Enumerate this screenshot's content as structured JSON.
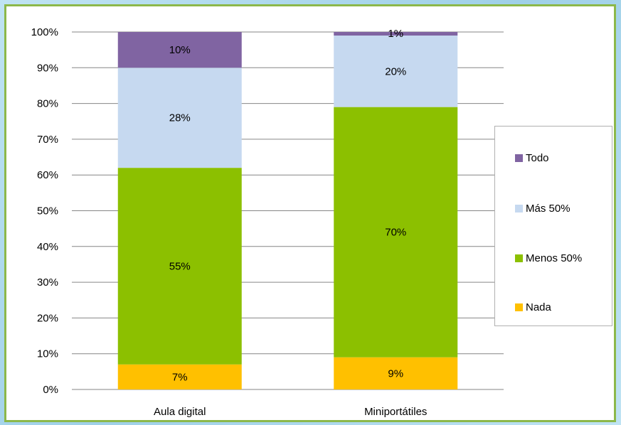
{
  "chart_data": {
    "type": "bar",
    "stacked": true,
    "categories": [
      "Aula digital",
      "Miniportátiles"
    ],
    "series": [
      {
        "name": "Nada",
        "color": "#ffc000",
        "values": [
          7,
          9
        ],
        "labels": [
          "7%",
          "9%"
        ]
      },
      {
        "name": "Menos 50%",
        "color": "#8cc000",
        "values": [
          55,
          70
        ],
        "labels": [
          "55%",
          "70%"
        ]
      },
      {
        "name": "Más 50%",
        "color": "#c6d9f0",
        "values": [
          28,
          20
        ],
        "labels": [
          "28%",
          "20%"
        ]
      },
      {
        "name": "Todo",
        "color": "#8064a2",
        "values": [
          10,
          1
        ],
        "labels": [
          "10%",
          "1%"
        ]
      }
    ],
    "yticks": [
      "0%",
      "10%",
      "20%",
      "30%",
      "40%",
      "50%",
      "60%",
      "70%",
      "80%",
      "90%",
      "100%"
    ],
    "ylim": [
      0,
      100
    ],
    "grid": true,
    "legend_position": "right",
    "legend_order": [
      "Todo",
      "Más 50%",
      "Menos 50%",
      "Nada"
    ]
  }
}
